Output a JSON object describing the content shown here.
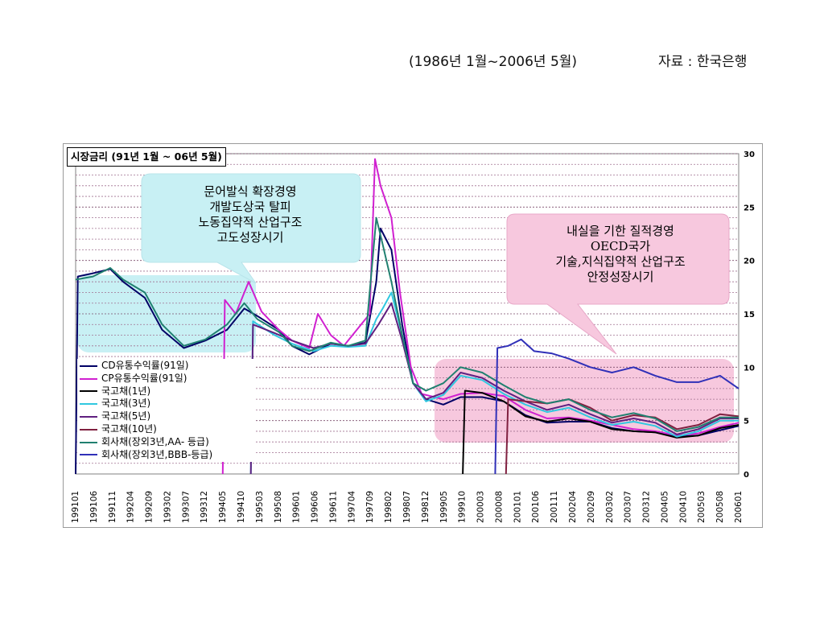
{
  "header": {
    "period": "(1986년 1월~2006년 5월)",
    "source": "자료 : 한국은행"
  },
  "callouts": {
    "left": [
      "문어발식 확장경영",
      "개발도상국 탈피",
      "노동집약적 산업구조",
      "고도성장시기"
    ],
    "right": [
      "내실을 기한 질적경영",
      "OECD국가",
      "기술,지식집약적 산업구조",
      "안정성장시기"
    ],
    "colors": {
      "left_fill": "#c8f0f4",
      "right_fill": "#f7c8de"
    }
  },
  "chart_data": {
    "type": "line",
    "title": "시장금리 (91년 1월 ~ 06년 5월)",
    "xlabel": "",
    "ylabel": "",
    "ylim": [
      0,
      30
    ],
    "y_ticks": [
      0,
      5,
      10,
      15,
      20,
      25,
      30
    ],
    "grid": true,
    "legend_position": "lower-left",
    "x_tick_labels": [
      "199101",
      "199106",
      "199111",
      "199204",
      "199209",
      "199302",
      "199307",
      "199312",
      "199405",
      "199410",
      "199503",
      "199508",
      "199601",
      "199606",
      "199611",
      "199704",
      "199709",
      "199802",
      "199807",
      "199812",
      "199905",
      "199910",
      "200003",
      "200008",
      "200101",
      "200106",
      "200111",
      "200204",
      "200209",
      "200302",
      "200307",
      "200312",
      "200405",
      "200410",
      "200503",
      "200508",
      "200601"
    ],
    "x_range": [
      1991.0,
      2006.33
    ],
    "series": [
      {
        "name": "CD유통수익률(91일)",
        "color": "#000066",
        "points": [
          [
            1991.0,
            0
          ],
          [
            1991.05,
            18.5
          ],
          [
            1991.4,
            18.8
          ],
          [
            1991.8,
            19.2
          ],
          [
            1992.1,
            18.0
          ],
          [
            1992.6,
            16.5
          ],
          [
            1993.0,
            13.5
          ],
          [
            1993.5,
            11.8
          ],
          [
            1994.0,
            12.5
          ],
          [
            1994.5,
            13.5
          ],
          [
            1994.9,
            15.5
          ],
          [
            1995.2,
            14.8
          ],
          [
            1995.7,
            13.5
          ],
          [
            1996.0,
            12.0
          ],
          [
            1996.4,
            11.2
          ],
          [
            1996.9,
            12.2
          ],
          [
            1997.3,
            12.0
          ],
          [
            1997.7,
            12.3
          ],
          [
            1997.95,
            18.0
          ],
          [
            1998.05,
            23.0
          ],
          [
            1998.3,
            21.0
          ],
          [
            1998.55,
            14.0
          ],
          [
            1998.8,
            8.5
          ],
          [
            1999.1,
            7.0
          ],
          [
            1999.5,
            6.5
          ],
          [
            1999.9,
            7.2
          ],
          [
            2000.4,
            7.2
          ],
          [
            2000.9,
            6.8
          ],
          [
            2001.4,
            5.5
          ],
          [
            2001.9,
            4.8
          ],
          [
            2002.4,
            4.9
          ],
          [
            2002.9,
            4.9
          ],
          [
            2003.4,
            4.3
          ],
          [
            2003.9,
            4.0
          ],
          [
            2004.4,
            3.9
          ],
          [
            2004.9,
            3.5
          ],
          [
            2005.4,
            3.6
          ],
          [
            2005.9,
            4.1
          ],
          [
            2006.33,
            4.5
          ]
        ]
      },
      {
        "name": "CP유통수익률(91일)",
        "color": "#d020d0",
        "points": [
          [
            1994.4,
            0
          ],
          [
            1994.45,
            16.3
          ],
          [
            1994.7,
            15.0
          ],
          [
            1995.0,
            18.0
          ],
          [
            1995.3,
            15.2
          ],
          [
            1995.7,
            13.5
          ],
          [
            1996.0,
            12.5
          ],
          [
            1996.4,
            11.8
          ],
          [
            1996.6,
            15.0
          ],
          [
            1996.9,
            13.0
          ],
          [
            1997.2,
            12.0
          ],
          [
            1997.5,
            13.5
          ],
          [
            1997.8,
            15.0
          ],
          [
            1997.92,
            29.5
          ],
          [
            1998.05,
            27.0
          ],
          [
            1998.3,
            24.0
          ],
          [
            1998.5,
            17.0
          ],
          [
            1998.75,
            10.0
          ],
          [
            1999.0,
            7.5
          ],
          [
            1999.5,
            7.0
          ],
          [
            1999.9,
            7.5
          ],
          [
            2000.4,
            7.6
          ],
          [
            2000.9,
            7.3
          ],
          [
            2001.4,
            6.0
          ],
          [
            2001.9,
            5.2
          ],
          [
            2002.4,
            5.3
          ],
          [
            2002.9,
            5.0
          ],
          [
            2003.4,
            4.6
          ],
          [
            2003.9,
            4.2
          ],
          [
            2004.4,
            4.0
          ],
          [
            2004.9,
            3.6
          ],
          [
            2005.4,
            3.8
          ],
          [
            2005.9,
            4.4
          ],
          [
            2006.33,
            4.8
          ]
        ]
      },
      {
        "name": "국고채(1년)",
        "color": "#000000",
        "points": [
          [
            1999.95,
            0
          ],
          [
            2000.0,
            7.8
          ],
          [
            2000.4,
            7.6
          ],
          [
            2000.9,
            6.8
          ],
          [
            2001.4,
            5.4
          ],
          [
            2001.9,
            4.9
          ],
          [
            2002.4,
            5.2
          ],
          [
            2002.9,
            4.9
          ],
          [
            2003.4,
            4.2
          ],
          [
            2003.9,
            4.0
          ],
          [
            2004.4,
            3.9
          ],
          [
            2004.9,
            3.4
          ],
          [
            2005.4,
            3.6
          ],
          [
            2005.9,
            4.3
          ],
          [
            2006.33,
            4.6
          ]
        ]
      },
      {
        "name": "국고채(3년)",
        "color": "#30c8e0",
        "points": [
          [
            1995.05,
            0
          ],
          [
            1995.1,
            14.3
          ],
          [
            1995.6,
            13.0
          ],
          [
            1996.0,
            12.2
          ],
          [
            1996.5,
            11.5
          ],
          [
            1996.9,
            12.0
          ],
          [
            1997.3,
            11.9
          ],
          [
            1997.7,
            12.0
          ],
          [
            1997.95,
            14.5
          ],
          [
            1998.1,
            15.5
          ],
          [
            1998.3,
            17.0
          ],
          [
            1998.55,
            13.0
          ],
          [
            1998.8,
            8.5
          ],
          [
            1999.1,
            6.8
          ],
          [
            1999.5,
            7.4
          ],
          [
            1999.9,
            9.2
          ],
          [
            2000.4,
            8.8
          ],
          [
            2000.9,
            7.5
          ],
          [
            2001.4,
            6.5
          ],
          [
            2001.9,
            5.8
          ],
          [
            2002.4,
            6.2
          ],
          [
            2002.9,
            5.3
          ],
          [
            2003.4,
            4.6
          ],
          [
            2003.9,
            4.9
          ],
          [
            2004.4,
            4.5
          ],
          [
            2004.9,
            3.5
          ],
          [
            2005.4,
            4.0
          ],
          [
            2005.9,
            5.0
          ],
          [
            2006.33,
            5.0
          ]
        ]
      },
      {
        "name": "국고채(5년)",
        "color": "#602080",
        "points": [
          [
            1995.05,
            0
          ],
          [
            1995.1,
            14.0
          ],
          [
            1995.6,
            13.2
          ],
          [
            1996.0,
            12.5
          ],
          [
            1996.5,
            11.8
          ],
          [
            1996.9,
            12.2
          ],
          [
            1997.3,
            12.0
          ],
          [
            1997.7,
            12.2
          ],
          [
            1998.0,
            14.0
          ],
          [
            1998.3,
            16.0
          ],
          [
            1998.55,
            12.5
          ],
          [
            1998.8,
            8.5
          ],
          [
            1999.1,
            7.0
          ],
          [
            1999.5,
            7.6
          ],
          [
            1999.9,
            9.5
          ],
          [
            2000.4,
            9.0
          ],
          [
            2000.9,
            7.8
          ],
          [
            2001.4,
            6.8
          ],
          [
            2001.9,
            6.0
          ],
          [
            2002.4,
            6.5
          ],
          [
            2002.9,
            5.6
          ],
          [
            2003.4,
            4.8
          ],
          [
            2003.9,
            5.2
          ],
          [
            2004.4,
            4.8
          ],
          [
            2004.9,
            3.7
          ],
          [
            2005.4,
            4.2
          ],
          [
            2005.9,
            5.2
          ],
          [
            2006.33,
            5.2
          ]
        ]
      },
      {
        "name": "국고채(10년)",
        "color": "#802040",
        "points": [
          [
            2000.95,
            0
          ],
          [
            2001.0,
            7.0
          ],
          [
            2001.4,
            6.8
          ],
          [
            2001.9,
            6.6
          ],
          [
            2002.4,
            7.0
          ],
          [
            2002.9,
            6.2
          ],
          [
            2003.4,
            5.0
          ],
          [
            2003.9,
            5.5
          ],
          [
            2004.4,
            5.3
          ],
          [
            2004.9,
            4.2
          ],
          [
            2005.4,
            4.6
          ],
          [
            2005.9,
            5.6
          ],
          [
            2006.33,
            5.4
          ]
        ]
      },
      {
        "name": "회사채(장외3년,AA- 등급)",
        "color": "#208070",
        "points": [
          [
            1991.0,
            18.2
          ],
          [
            1991.4,
            18.5
          ],
          [
            1991.8,
            19.3
          ],
          [
            1992.1,
            18.2
          ],
          [
            1992.6,
            17.0
          ],
          [
            1993.0,
            14.0
          ],
          [
            1993.5,
            12.0
          ],
          [
            1994.0,
            12.6
          ],
          [
            1994.5,
            14.0
          ],
          [
            1994.9,
            16.0
          ],
          [
            1995.2,
            14.5
          ],
          [
            1995.7,
            13.3
          ],
          [
            1996.0,
            12.0
          ],
          [
            1996.4,
            11.5
          ],
          [
            1996.9,
            12.3
          ],
          [
            1997.3,
            12.0
          ],
          [
            1997.7,
            12.5
          ],
          [
            1997.95,
            24.0
          ],
          [
            1998.1,
            21.5
          ],
          [
            1998.3,
            18.0
          ],
          [
            1998.55,
            13.0
          ],
          [
            1998.8,
            8.5
          ],
          [
            1999.1,
            7.8
          ],
          [
            1999.5,
            8.5
          ],
          [
            1999.9,
            10.0
          ],
          [
            2000.4,
            9.5
          ],
          [
            2000.9,
            8.3
          ],
          [
            2001.4,
            7.2
          ],
          [
            2001.9,
            6.6
          ],
          [
            2002.4,
            7.0
          ],
          [
            2002.9,
            6.0
          ],
          [
            2003.4,
            5.3
          ],
          [
            2003.9,
            5.7
          ],
          [
            2004.4,
            5.2
          ],
          [
            2004.9,
            4.0
          ],
          [
            2005.4,
            4.4
          ],
          [
            2005.9,
            5.3
          ],
          [
            2006.33,
            5.3
          ]
        ]
      },
      {
        "name": "회사채(장외3년,BBB-등급)",
        "color": "#3030b8",
        "points": [
          [
            2000.7,
            0
          ],
          [
            2000.75,
            11.8
          ],
          [
            2001.0,
            12.0
          ],
          [
            2001.3,
            12.6
          ],
          [
            2001.6,
            11.5
          ],
          [
            2002.0,
            11.3
          ],
          [
            2002.4,
            10.8
          ],
          [
            2002.9,
            10.0
          ],
          [
            2003.4,
            9.5
          ],
          [
            2003.9,
            10.0
          ],
          [
            2004.4,
            9.2
          ],
          [
            2004.9,
            8.6
          ],
          [
            2005.4,
            8.6
          ],
          [
            2005.9,
            9.2
          ],
          [
            2006.33,
            8.0
          ]
        ]
      }
    ]
  }
}
